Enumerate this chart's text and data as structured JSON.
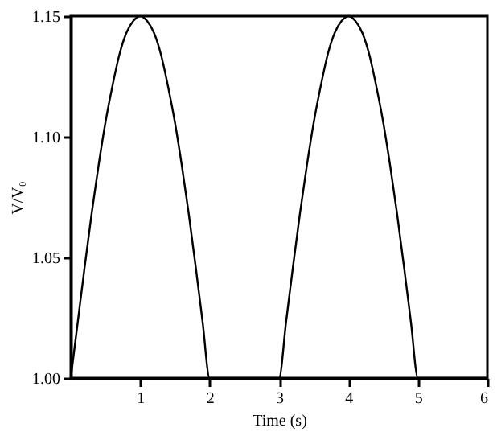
{
  "chart_data": {
    "type": "line",
    "xlabel": "Time (s)",
    "ylabel": "V/V₀",
    "x": [
      0,
      0.1,
      0.2,
      0.3,
      0.4,
      0.5,
      0.6,
      0.7,
      0.8,
      0.9,
      1.0,
      1.1,
      1.2,
      1.3,
      1.4,
      1.5,
      1.6,
      1.7,
      1.8,
      1.9,
      2.0,
      3.0,
      3.1,
      3.2,
      3.3,
      3.4,
      3.5,
      3.6,
      3.7,
      3.8,
      3.9,
      4.0,
      4.1,
      4.2,
      4.3,
      4.4,
      4.5,
      4.6,
      4.7,
      4.8,
      4.9,
      5.0,
      6.0
    ],
    "series": [
      {
        "color": "#000000",
        "values": [
          1.0,
          1.023,
          1.046,
          1.068,
          1.088,
          1.106,
          1.121,
          1.134,
          1.143,
          1.148,
          1.15,
          1.148,
          1.143,
          1.134,
          1.121,
          1.106,
          1.088,
          1.068,
          1.046,
          1.023,
          1.0,
          1.0,
          1.023,
          1.046,
          1.068,
          1.088,
          1.106,
          1.121,
          1.134,
          1.143,
          1.148,
          1.15,
          1.148,
          1.143,
          1.134,
          1.121,
          1.106,
          1.088,
          1.068,
          1.046,
          1.023,
          1.0,
          1.0
        ]
      }
    ],
    "xlim": [
      0,
      6
    ],
    "xticks": [
      1,
      2,
      3,
      4,
      5,
      6
    ],
    "ylim": [
      1.0,
      1.15
    ],
    "yticks": [
      {
        "value": 1.0,
        "label": "1.00"
      },
      {
        "value": 1.05,
        "label": "1.05"
      },
      {
        "value": 1.1,
        "label": "1.10"
      },
      {
        "value": 1.15,
        "label": "1.15"
      }
    ],
    "grid": false,
    "marker": "none",
    "line_style": "solid"
  }
}
